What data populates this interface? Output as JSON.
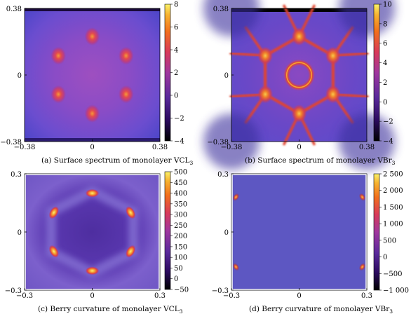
{
  "chart_data": [
    {
      "type": "heatmap",
      "caption": "(a) Surface spectrum of monolayer VCL",
      "caption_sub": "3",
      "x_ticks": [
        "−0.38",
        "0",
        "0.38"
      ],
      "y_ticks": [
        "0.38",
        "0",
        "−0.38"
      ],
      "xlim": [
        -0.38,
        0.38
      ],
      "ylim": [
        -0.38,
        0.38
      ],
      "colorbar_ticks": [
        "8",
        "6",
        "4",
        "2",
        "0",
        "−2",
        "−4"
      ],
      "colorbar_range": [
        -4,
        8
      ],
      "features": [
        {
          "x": 0.0,
          "y": 0.22,
          "value": 6
        },
        {
          "x": 0.19,
          "y": 0.11,
          "value": 6
        },
        {
          "x": 0.19,
          "y": -0.11,
          "value": 6
        },
        {
          "x": 0.0,
          "y": -0.22,
          "value": 6
        },
        {
          "x": -0.19,
          "y": -0.11,
          "value": 6
        },
        {
          "x": -0.19,
          "y": 0.11,
          "value": 6
        }
      ]
    },
    {
      "type": "heatmap",
      "caption": "(b) Surface spectrum of monolayer VBr",
      "caption_sub": "3",
      "x_ticks": [
        "−0.38",
        "0",
        "0.38"
      ],
      "y_ticks": [
        "0.38",
        "0",
        "−0.38"
      ],
      "xlim": [
        -0.38,
        0.38
      ],
      "ylim": [
        -0.38,
        0.38
      ],
      "colorbar_ticks": [
        "10",
        "8",
        "6",
        "4",
        "2",
        "0",
        "−2",
        "−4"
      ],
      "colorbar_range": [
        -4,
        10
      ],
      "features": [
        {
          "shape": "ring",
          "x": 0.0,
          "y": 0.0,
          "radius": 0.07
        },
        {
          "shape": "hexagon",
          "x": 0.0,
          "y": 0.0,
          "radius": 0.22
        },
        {
          "x": 0.0,
          "y": 0.22,
          "value": 8
        },
        {
          "x": 0.19,
          "y": 0.11,
          "value": 8
        },
        {
          "x": 0.19,
          "y": -0.11,
          "value": 8
        },
        {
          "x": 0.0,
          "y": -0.22,
          "value": 8
        },
        {
          "x": -0.19,
          "y": -0.11,
          "value": 8
        },
        {
          "x": -0.19,
          "y": 0.11,
          "value": 8
        }
      ]
    },
    {
      "type": "heatmap",
      "caption": "(c) Berry curvature of monolayer VCL",
      "caption_sub": "3",
      "x_ticks": [
        "−0.3",
        "0",
        "0.3"
      ],
      "y_ticks": [
        "0.3",
        "0",
        "−0.3"
      ],
      "xlim": [
        -0.3,
        0.3
      ],
      "ylim": [
        -0.3,
        0.3
      ],
      "colorbar_ticks": [
        "500",
        "450",
        "400",
        "350",
        "300",
        "250",
        "200",
        "150",
        "100",
        "50",
        "0",
        "−50"
      ],
      "colorbar_range": [
        -50,
        500
      ],
      "features": [
        {
          "x": 0.0,
          "y": 0.2,
          "value": 480
        },
        {
          "x": 0.17,
          "y": 0.1,
          "value": 480
        },
        {
          "x": 0.17,
          "y": -0.1,
          "value": 480
        },
        {
          "x": 0.0,
          "y": -0.2,
          "value": 480
        },
        {
          "x": -0.17,
          "y": -0.1,
          "value": 480
        },
        {
          "x": -0.17,
          "y": 0.1,
          "value": 480
        }
      ]
    },
    {
      "type": "heatmap",
      "caption": "(d) Berry curvature of monolayer VBr",
      "caption_sub": "3",
      "x_ticks": [
        "−0.3",
        "0",
        "0.3"
      ],
      "y_ticks": [
        "0.3",
        "0",
        "−0.3"
      ],
      "xlim": [
        -0.3,
        0.3
      ],
      "ylim": [
        -0.3,
        0.3
      ],
      "colorbar_ticks": [
        "2 500",
        "2 000",
        "1 500",
        "1 000",
        "500",
        "0",
        "−500",
        "−1 000"
      ],
      "colorbar_range": [
        -1000,
        2500
      ],
      "features": [
        {
          "x": -0.28,
          "y": 0.18,
          "value": 1800
        },
        {
          "x": 0.28,
          "y": 0.18,
          "value": 1800
        },
        {
          "x": -0.28,
          "y": -0.18,
          "value": 1800
        },
        {
          "x": 0.28,
          "y": -0.18,
          "value": 1800
        }
      ]
    }
  ]
}
